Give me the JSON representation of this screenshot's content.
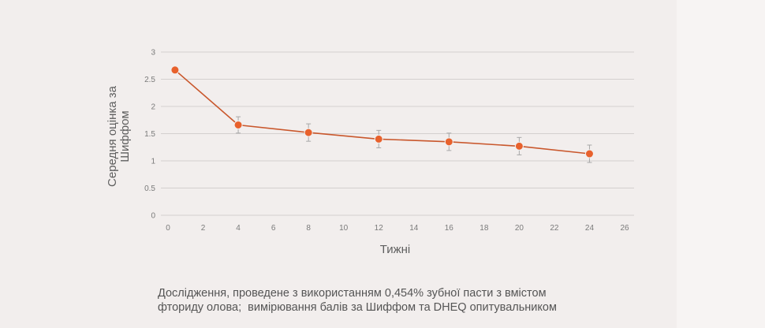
{
  "chart_data": {
    "type": "line",
    "xlabel": "Тижні",
    "ylabel_lines": [
      "Середня оцінка за",
      "Шиффом"
    ],
    "xlim": [
      0,
      26
    ],
    "ylim": [
      0,
      3
    ],
    "x_ticks": [
      0,
      2,
      4,
      6,
      8,
      10,
      12,
      14,
      16,
      18,
      20,
      22,
      24,
      26
    ],
    "y_ticks": [
      0,
      0.5,
      1,
      1.5,
      2,
      2.5,
      3
    ],
    "grid": true,
    "series": [
      {
        "x": [
          0.4,
          4,
          8,
          12,
          16,
          20,
          24
        ],
        "y": [
          2.67,
          1.66,
          1.52,
          1.4,
          1.35,
          1.27,
          1.13
        ],
        "error": [
          0,
          0.15,
          0.16,
          0.16,
          0.16,
          0.16,
          0.16
        ]
      }
    ],
    "colors": {
      "line": "#c9572c",
      "marker": "#e8612c",
      "error_bar": "#a8a8a8",
      "grid": "#d4d0cf"
    }
  },
  "caption": {
    "line1": "Дослідження, проведене з використанням 0,454% зубної пасти з вмістом",
    "line2": "фториду олова;  вимірювання балів за Шиффом та DHEQ опитувальником"
  }
}
